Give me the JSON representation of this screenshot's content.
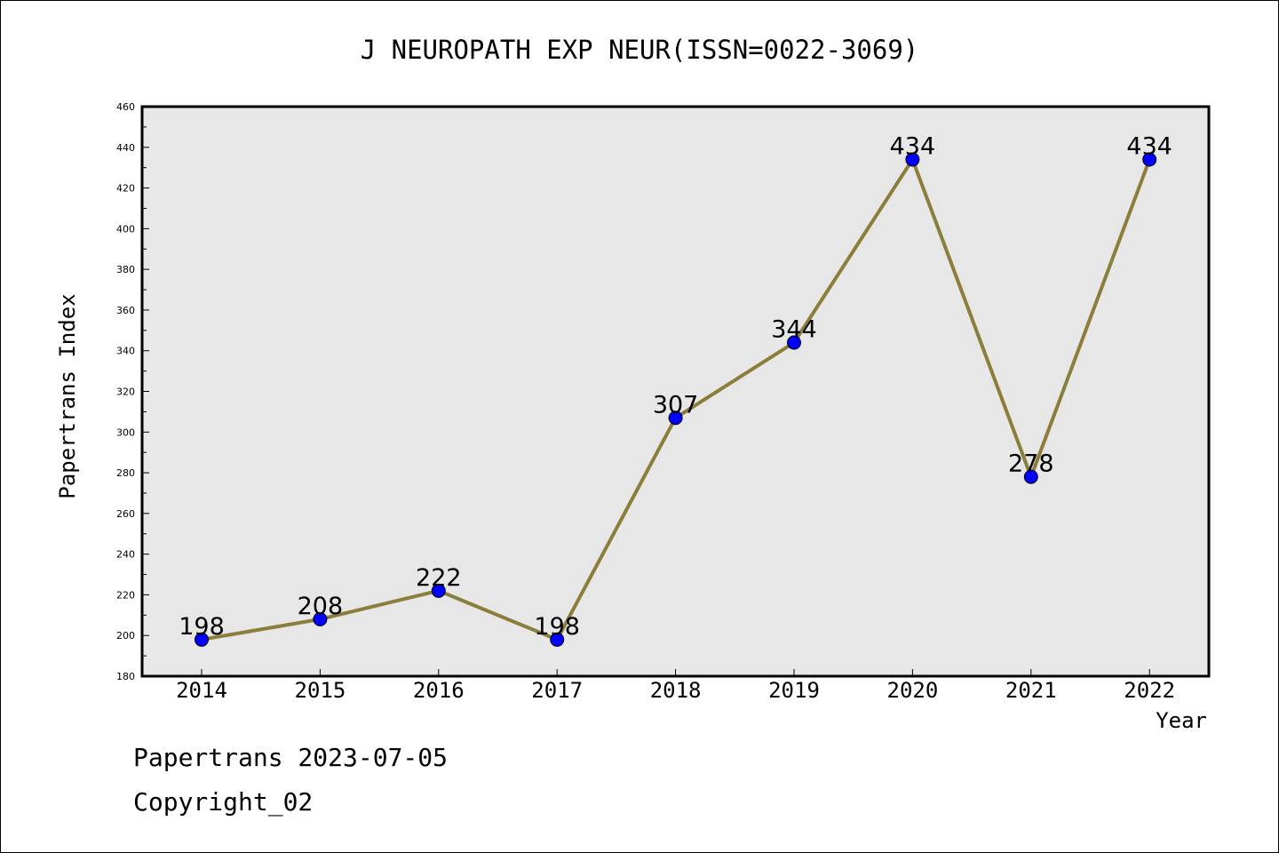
{
  "chart_data": {
    "type": "line",
    "title": "J NEUROPATH EXP NEUR(ISSN=0022-3069)",
    "xlabel": "Year",
    "ylabel": "Papertrans Index",
    "x": [
      "2014",
      "2015",
      "2016",
      "2017",
      "2018",
      "2019",
      "2020",
      "2021",
      "2022"
    ],
    "series": [
      {
        "values": [
          198,
          208,
          222,
          198,
          307,
          344,
          434,
          278,
          434
        ]
      }
    ],
    "data_labels": [
      "198",
      "208",
      "222",
      "198",
      "307",
      "344",
      "434",
      "278",
      "434"
    ],
    "ylim": [
      180,
      460
    ],
    "y_ticks": [
      "180",
      "200",
      "220",
      "240",
      "260",
      "280",
      "300",
      "320",
      "340",
      "360",
      "380",
      "400",
      "420",
      "440",
      "460"
    ],
    "y_tick_step": 20,
    "grid": false,
    "legend": "none",
    "colors": {
      "plot_background": "#e7e7e7",
      "line": "#8b7d3a",
      "marker": "#0000ff"
    }
  },
  "footer": {
    "line1": "Papertrans 2023-07-05",
    "line2": "Copyright_02"
  }
}
